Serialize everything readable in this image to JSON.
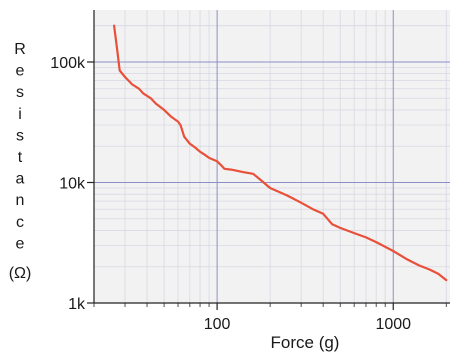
{
  "chart_data": {
    "type": "line",
    "title": "",
    "xlabel": "Force (g)",
    "ylabel_letters": [
      "R",
      "e",
      "s",
      "i",
      "s",
      "t",
      "a",
      "n",
      "c",
      "e"
    ],
    "ylabel_unit": "(Ω)",
    "x_scale": "log",
    "y_scale": "log",
    "xlim": [
      20,
      2100
    ],
    "ylim": [
      1000,
      270000
    ],
    "x_ticks": [
      {
        "value": 100,
        "label": "100"
      },
      {
        "value": 1000,
        "label": "1000"
      }
    ],
    "y_ticks": [
      {
        "value": 1000,
        "label": "1k"
      },
      {
        "value": 10000,
        "label": "10k"
      },
      {
        "value": 100000,
        "label": "100k"
      }
    ],
    "grid": true,
    "colors": {
      "line": "#e8503a",
      "grid_major": "#8a8fc8",
      "grid_minor": "#d8d8e4",
      "plot_bg": "#f2f2f2",
      "axis": "#222222"
    },
    "series": [
      {
        "x": [
          26,
          27,
          28,
          30,
          33,
          36,
          38,
          42,
          45,
          50,
          55,
          60,
          62,
          65,
          70,
          75,
          80,
          85,
          90,
          95,
          100,
          105,
          110,
          120,
          130,
          140,
          150,
          160,
          170,
          200,
          250,
          300,
          350,
          400,
          450,
          500,
          600,
          700,
          800,
          1000,
          1200,
          1400,
          1600,
          1800,
          2000
        ],
        "y": [
          200000,
          130000,
          85000,
          75000,
          65000,
          60000,
          55000,
          50000,
          45000,
          40000,
          35000,
          32000,
          30000,
          24000,
          21000,
          19500,
          18000,
          17000,
          16000,
          15500,
          15000,
          14000,
          13000,
          12800,
          12500,
          12200,
          12000,
          11800,
          11000,
          9000,
          7800,
          6800,
          6000,
          5500,
          4500,
          4200,
          3800,
          3500,
          3200,
          2700,
          2300,
          2050,
          1900,
          1750,
          1550
        ]
      }
    ]
  }
}
